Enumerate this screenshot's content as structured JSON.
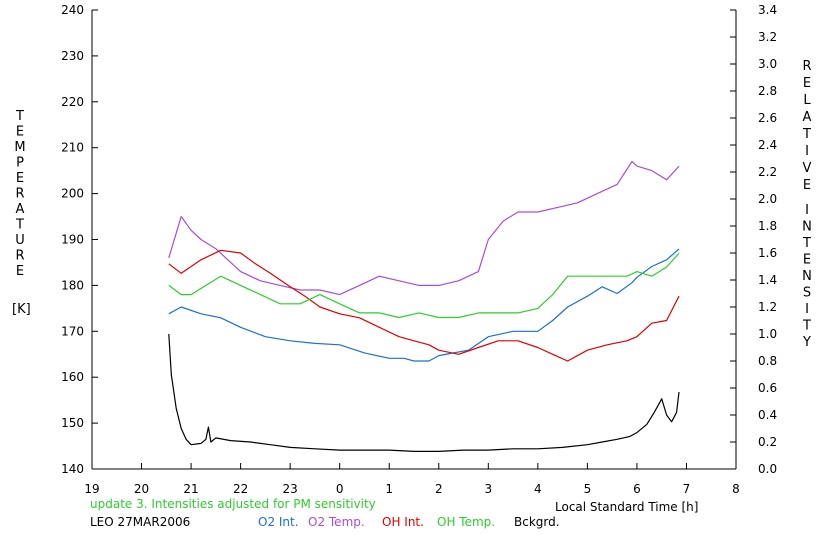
{
  "chart_data": {
    "type": "line",
    "title": "",
    "left_axis": {
      "label_letters": [
        "T",
        "E",
        "M",
        "P",
        "E",
        "R",
        "A",
        "T",
        "U",
        "R",
        "E"
      ],
      "unit": "[K]",
      "ylim": [
        140,
        240
      ],
      "ticks": [
        "140",
        "150",
        "160",
        "170",
        "180",
        "190",
        "200",
        "210",
        "220",
        "230",
        "240"
      ]
    },
    "right_axis": {
      "label_letters_1": [
        "R",
        "E",
        "L",
        "A",
        "T",
        "I",
        "V",
        "E"
      ],
      "label_letters_2": [
        "I",
        "N",
        "T",
        "E",
        "N",
        "S",
        "I",
        "T",
        "Y"
      ],
      "ylim": [
        0.0,
        3.4
      ],
      "ticks": [
        "0.0",
        "0.2",
        "0.4",
        "0.6",
        "0.8",
        "1.0",
        "1.2",
        "1.4",
        "1.6",
        "1.8",
        "2.0",
        "2.2",
        "2.4",
        "2.6",
        "2.8",
        "3.0",
        "3.2",
        "3.4"
      ]
    },
    "x_axis": {
      "label": "Local Standard Time [h]",
      "xlim": [
        19,
        32
      ],
      "tick_positions": [
        19,
        20,
        21,
        22,
        23,
        24,
        25,
        26,
        27,
        28,
        29,
        30,
        31,
        32
      ],
      "ticks": [
        "19",
        "20",
        "21",
        "22",
        "23",
        "0",
        "1",
        "2",
        "3",
        "4",
        "5",
        "6",
        "7",
        "8"
      ]
    },
    "grid": false,
    "series": [
      {
        "name": "O2 Int.",
        "axis": "right",
        "color": "#1a6fd8",
        "x": [
          20.55,
          20.8,
          21.2,
          21.6,
          22.0,
          22.5,
          23.0,
          23.5,
          24.0,
          24.5,
          25.0,
          25.3,
          25.5,
          25.8,
          26.0,
          26.3,
          26.6,
          27.0,
          27.5,
          28.0,
          28.3,
          28.6,
          29.0,
          29.3,
          29.6,
          29.9,
          30.0,
          30.3,
          30.6,
          30.85
        ],
        "y": [
          1.15,
          1.2,
          1.15,
          1.12,
          1.05,
          0.98,
          0.95,
          0.93,
          0.92,
          0.86,
          0.82,
          0.82,
          0.8,
          0.8,
          0.84,
          0.86,
          0.88,
          0.98,
          1.02,
          1.02,
          1.1,
          1.2,
          1.28,
          1.35,
          1.3,
          1.38,
          1.42,
          1.5,
          1.55,
          1.63
        ]
      },
      {
        "name": "O2 Temp.",
        "axis": "left",
        "color": "#a64dd6",
        "x": [
          20.55,
          20.8,
          21.0,
          21.2,
          21.5,
          21.7,
          22.0,
          22.4,
          22.8,
          23.2,
          23.6,
          24.0,
          24.4,
          24.8,
          25.2,
          25.6,
          26.0,
          26.4,
          26.8,
          27.0,
          27.3,
          27.6,
          28.0,
          28.4,
          28.8,
          29.2,
          29.6,
          29.9,
          30.0,
          30.3,
          30.6,
          30.85
        ],
        "y": [
          186,
          195,
          192,
          190,
          188,
          186,
          183,
          181,
          180,
          179,
          179,
          178,
          180,
          182,
          181,
          180,
          180,
          181,
          183,
          190,
          194,
          196,
          196,
          197,
          198,
          200,
          202,
          207,
          206,
          205,
          203,
          206
        ]
      },
      {
        "name": "OH Int.",
        "axis": "right",
        "color": "#e00000",
        "x": [
          20.55,
          20.8,
          21.2,
          21.6,
          22.0,
          22.3,
          22.6,
          23.0,
          23.3,
          23.6,
          24.0,
          24.4,
          24.8,
          25.2,
          25.5,
          25.8,
          26.0,
          26.4,
          26.8,
          27.2,
          27.6,
          28.0,
          28.3,
          28.6,
          29.0,
          29.4,
          29.8,
          30.0,
          30.3,
          30.6,
          30.85
        ],
        "y": [
          1.52,
          1.45,
          1.55,
          1.62,
          1.6,
          1.52,
          1.45,
          1.35,
          1.28,
          1.2,
          1.15,
          1.12,
          1.05,
          0.98,
          0.95,
          0.92,
          0.88,
          0.85,
          0.9,
          0.95,
          0.95,
          0.9,
          0.85,
          0.8,
          0.88,
          0.92,
          0.95,
          0.98,
          1.08,
          1.1,
          1.28
        ]
      },
      {
        "name": "OH Temp.",
        "axis": "left",
        "color": "#2ecc2e",
        "x": [
          20.55,
          20.8,
          21.0,
          21.3,
          21.6,
          22.0,
          22.4,
          22.8,
          23.2,
          23.6,
          24.0,
          24.4,
          24.8,
          25.2,
          25.6,
          26.0,
          26.4,
          26.8,
          27.2,
          27.6,
          28.0,
          28.3,
          28.6,
          29.0,
          29.4,
          29.8,
          30.0,
          30.3,
          30.6,
          30.85
        ],
        "y": [
          180,
          178,
          178,
          180,
          182,
          180,
          178,
          176,
          176,
          178,
          176,
          174,
          174,
          173,
          174,
          173,
          173,
          174,
          174,
          174,
          175,
          178,
          182,
          182,
          182,
          182,
          183,
          182,
          184,
          187
        ]
      },
      {
        "name": "Bckgrd.",
        "axis": "right",
        "color": "#000000",
        "x": [
          20.55,
          20.6,
          20.7,
          20.8,
          20.9,
          21.0,
          21.2,
          21.3,
          21.35,
          21.4,
          21.5,
          21.8,
          22.2,
          22.6,
          23.0,
          23.5,
          24.0,
          24.5,
          25.0,
          25.5,
          26.0,
          26.5,
          27.0,
          27.5,
          28.0,
          28.5,
          29.0,
          29.3,
          29.6,
          29.85,
          30.0,
          30.2,
          30.35,
          30.5,
          30.6,
          30.7,
          30.8,
          30.85
        ],
        "y": [
          1.0,
          0.7,
          0.45,
          0.3,
          0.22,
          0.18,
          0.19,
          0.22,
          0.31,
          0.2,
          0.23,
          0.21,
          0.2,
          0.18,
          0.16,
          0.15,
          0.14,
          0.14,
          0.14,
          0.13,
          0.13,
          0.14,
          0.14,
          0.15,
          0.15,
          0.16,
          0.18,
          0.2,
          0.22,
          0.24,
          0.27,
          0.33,
          0.42,
          0.52,
          0.4,
          0.35,
          0.42,
          0.57
        ]
      }
    ],
    "annotations": [
      {
        "text": "update 3. Intensities adjusted for PM sensitivity",
        "color": "#2ecc2e"
      },
      {
        "text": "LEO 27MAR2006",
        "color": "#000000"
      }
    ]
  }
}
